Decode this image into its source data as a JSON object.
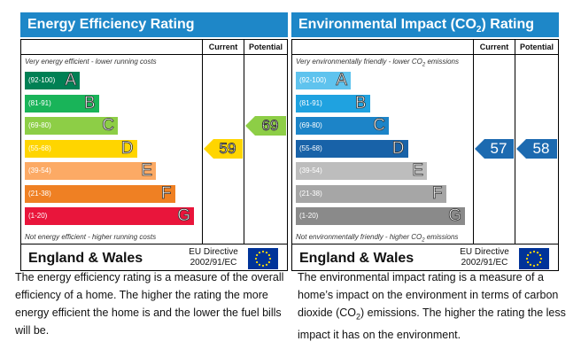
{
  "chart_data": [
    {
      "type": "bar",
      "title": "Energy Efficiency Rating",
      "columns": [
        "Current",
        "Potential"
      ],
      "note_top": "Very energy efficient - lower running costs",
      "note_bottom": "Not energy efficient - higher running costs",
      "bands": [
        {
          "range": "(92-100)",
          "letter": "A",
          "color": "#008054"
        },
        {
          "range": "(81-91)",
          "letter": "B",
          "color": "#19b459"
        },
        {
          "range": "(69-80)",
          "letter": "C",
          "color": "#8dce46"
        },
        {
          "range": "(55-68)",
          "letter": "D",
          "color": "#ffd500"
        },
        {
          "range": "(39-54)",
          "letter": "E",
          "color": "#fcaa65"
        },
        {
          "range": "(21-38)",
          "letter": "F",
          "color": "#ef8023"
        },
        {
          "range": "(1-20)",
          "letter": "G",
          "color": "#e9153b"
        }
      ],
      "current": {
        "value": "59",
        "band": "D",
        "color": "#ffd500"
      },
      "potential": {
        "value": "69",
        "band": "C",
        "color": "#8dce46"
      },
      "region": "England & Wales",
      "directive": [
        "EU Directive",
        "2002/91/EC"
      ],
      "header_color": "#1e87c8"
    },
    {
      "type": "bar",
      "title": "Environmental Impact (CO",
      "title_sub": "2",
      "title_end": ") Rating",
      "columns": [
        "Current",
        "Potential"
      ],
      "note_top": "Very environmentally friendly - lower CO",
      "note_top_end": " emissions",
      "note_bottom": "Not environmentally friendly - higher CO",
      "note_bottom_end": " emissions",
      "sub2": "2",
      "bands": [
        {
          "range": "(92-100)",
          "letter": "A",
          "color": "#5fc3ee"
        },
        {
          "range": "(81-91)",
          "letter": "B",
          "color": "#1fa2e0"
        },
        {
          "range": "(69-80)",
          "letter": "C",
          "color": "#1c84c8"
        },
        {
          "range": "(55-68)",
          "letter": "D",
          "color": "#1862a8"
        },
        {
          "range": "(39-54)",
          "letter": "E",
          "color": "#bdbdbd"
        },
        {
          "range": "(21-38)",
          "letter": "F",
          "color": "#a6a6a6"
        },
        {
          "range": "(1-20)",
          "letter": "G",
          "color": "#8a8a8a"
        }
      ],
      "current": {
        "value": "57",
        "band": "D",
        "color": "#1c6ab0"
      },
      "potential": {
        "value": "58",
        "band": "D",
        "color": "#1c6ab0"
      },
      "region": "England & Wales",
      "directive": [
        "EU Directive",
        "2002/91/EC"
      ],
      "header_color": "#1e87c8"
    }
  ],
  "descriptions": {
    "energy": "The energy efficiency rating is a measure of the overall efficiency of a home. The higher the rating the more energy efficient the home is and the lower the fuel bills will be.",
    "env_a": "The environmental impact rating is a measure of a home’s impact on the environment in terms of carbon dioxide (CO",
    "env_sub": "2",
    "env_b": ") emissions. The higher the rating the less impact it has on the environment."
  }
}
